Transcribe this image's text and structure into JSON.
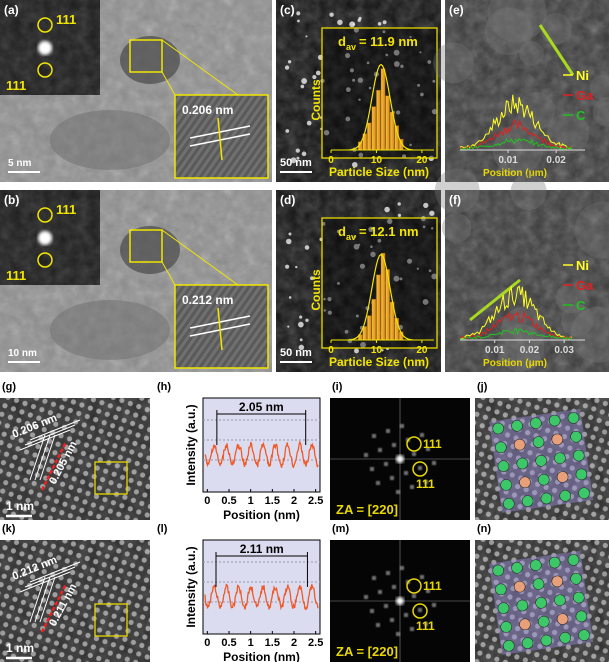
{
  "panels": {
    "a": {
      "label": "(a)",
      "fft_spots": [
        "111",
        "111"
      ],
      "spacing": "0.206 nm",
      "scale_bar": "5 nm"
    },
    "b": {
      "label": "(b)",
      "fft_spots": [
        "111",
        "111"
      ],
      "spacing": "0.212 nm",
      "scale_bar": "10 nm"
    },
    "c": {
      "label": "(c)",
      "mean_symbol": "d",
      "mean_subscript": "av",
      "mean_value": "= 11.9 nm",
      "y_label": "Counts",
      "x_label": "Particle Size (nm)",
      "scale_bar": "50 nm",
      "bins": [
        6,
        7,
        8,
        9,
        10,
        11,
        12,
        13,
        14,
        15,
        16
      ],
      "counts": [
        3,
        6,
        10,
        16,
        22,
        30,
        20,
        14,
        9,
        4
      ],
      "xlim": [
        0,
        22
      ],
      "xticks": [
        0,
        10,
        20
      ],
      "ylim": [
        0,
        35
      ]
    },
    "d": {
      "label": "(d)",
      "mean_symbol": "d",
      "mean_subscript": "av",
      "mean_value": "= 12.1 nm",
      "y_label": "Counts",
      "x_label": "Particle Size (nm)",
      "scale_bar": "50 nm",
      "bins": [
        6,
        7,
        8,
        9,
        10,
        11,
        12,
        13,
        14,
        15,
        16
      ],
      "counts": [
        2,
        5,
        9,
        15,
        24,
        32,
        26,
        14,
        8,
        3
      ],
      "xlim": [
        0,
        22
      ],
      "xticks": [
        0,
        10,
        20
      ],
      "ylim": [
        0,
        35
      ]
    },
    "e": {
      "label": "(e)",
      "legend": [
        "Ni",
        "Ga",
        "C"
      ],
      "x_label": "Position (μm)",
      "xlim": [
        0,
        0.026
      ],
      "xticks": [
        0.01,
        0.02
      ]
    },
    "f": {
      "label": "(f)",
      "legend": [
        "Ni",
        "Ga",
        "C"
      ],
      "x_label": "Position (μm)",
      "xlim": [
        0,
        0.036
      ],
      "xticks": [
        0.01,
        0.02,
        0.03
      ]
    },
    "g": {
      "label": "(g)",
      "spacings": [
        "0.206 nm",
        "0.205 nm"
      ],
      "scale_bar": "1 nm"
    },
    "h": {
      "label": "(h)",
      "y_label": "Intensity (a.u.)",
      "x_label": "Position (nm)",
      "distance": "2.05 nm",
      "markers": [
        0.22,
        2.27
      ],
      "xlim": [
        -0.1,
        2.6
      ],
      "xticks": [
        0,
        0.5,
        1,
        1.5,
        2,
        2.5
      ]
    },
    "i": {
      "label": "(i)",
      "spots": [
        "111",
        "111"
      ],
      "zone_axis": "ZA = [220]"
    },
    "j": {
      "label": "(j)"
    },
    "k": {
      "label": "(k)",
      "spacings": [
        "0.212 nm",
        "0.211 nm"
      ],
      "scale_bar": "1 nm"
    },
    "l": {
      "label": "(l)",
      "y_label": "Intensity (a.u.)",
      "x_label": "Position (nm)",
      "distance": "2.11 nm",
      "markers": [
        0.2,
        2.31
      ],
      "xlim": [
        -0.1,
        2.6
      ],
      "xticks": [
        0,
        0.5,
        1,
        1.5,
        2,
        2.5
      ]
    },
    "m": {
      "label": "(m)",
      "spots": [
        "111",
        "111"
      ],
      "zone_axis": "ZA = [220]"
    },
    "n": {
      "label": "(n)"
    }
  }
}
